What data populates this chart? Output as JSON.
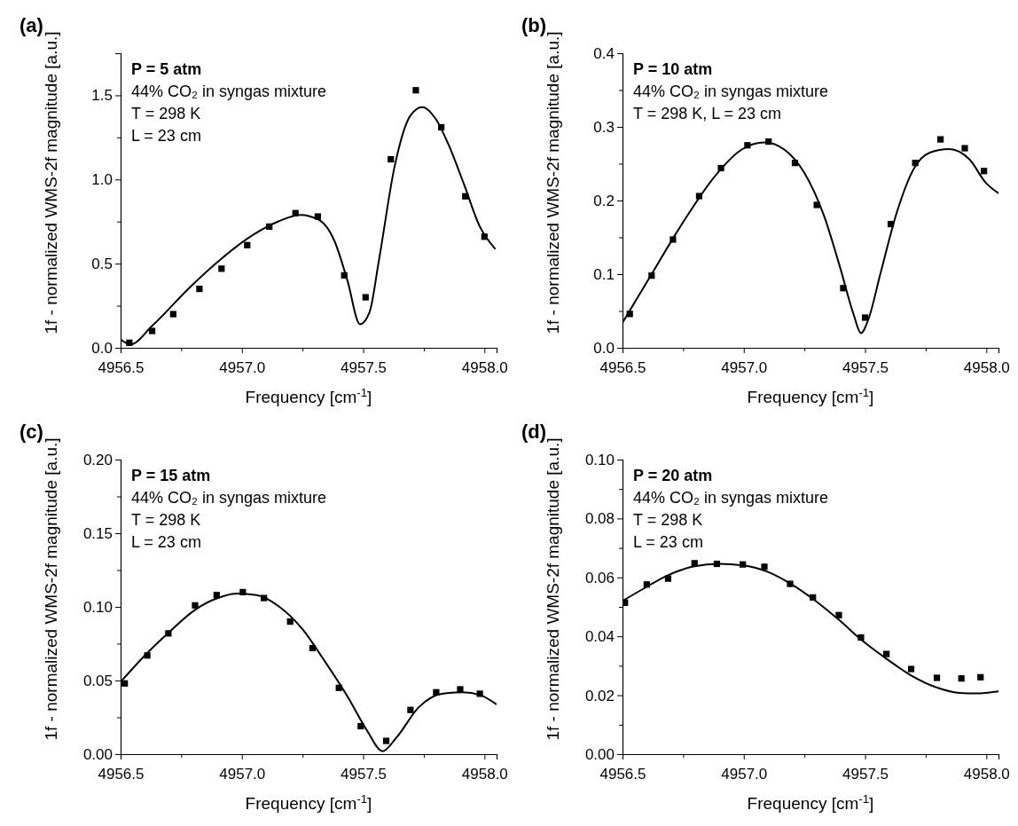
{
  "chart_data": [
    {
      "type": "scatter",
      "title": "(a)",
      "xlabel": "Frequency [cm$^{-1}$]",
      "ylabel": "1f - normalized WMS-2f magnitude [a.u.]",
      "annotations": [
        "P = 5 atm",
        "44% CO₂ in syngas mixture",
        "T = 298 K",
        "L = 23 cm"
      ],
      "marker": "square",
      "xlim": [
        4956.5,
        4958.05
      ],
      "ylim": [
        0,
        1.75
      ],
      "xticks": [
        {
          "value": 4956.5,
          "label": "4956.5"
        },
        {
          "value": 4956.75,
          "label": null
        },
        {
          "value": 4957.0,
          "label": "4957.0"
        },
        {
          "value": 4957.25,
          "label": null
        },
        {
          "value": 4957.5,
          "label": "4957.5"
        },
        {
          "value": 4957.75,
          "label": null
        },
        {
          "value": 4958.0,
          "label": "4958.0"
        }
      ],
      "yticks": [
        {
          "value": 0,
          "label": "0.0"
        },
        {
          "value": 0.25,
          "label": null
        },
        0.5,
        {
          "value": 0.75,
          "label": null
        },
        {
          "value": 1,
          "label": "1.0"
        },
        {
          "value": 1.25,
          "label": null
        },
        1.5
      ],
      "series": [
        {
          "color": "#000000",
          "x": [
            4956.536,
            4956.63,
            4956.717,
            4956.825,
            4956.916,
            4957.022,
            4957.113,
            4957.221,
            4957.313,
            4957.422,
            4957.51,
            4957.614,
            4957.717,
            4957.822,
            4957.921,
            4958.0
          ],
          "values": [
            0.03,
            0.1,
            0.2,
            0.35,
            0.47,
            0.61,
            0.72,
            0.8,
            0.78,
            0.43,
            0.3,
            1.12,
            1.53,
            1.31,
            0.9,
            0.66
          ]
        },
        {
          "type": "line",
          "color": "#000000",
          "marker": "none",
          "x": [
            4956.5,
            4956.54,
            4956.63,
            4956.786,
            4956.916,
            4957.045,
            4957.149,
            4957.24,
            4957.318,
            4957.383,
            4957.435,
            4957.487,
            4957.526,
            4957.565,
            4957.63,
            4957.695,
            4957.744,
            4957.799,
            4957.851,
            4957.916,
            4957.981,
            4958.043
          ],
          "values": [
            0.05,
            0.02,
            0.13,
            0.36,
            0.53,
            0.67,
            0.75,
            0.79,
            0.76,
            0.63,
            0.4,
            0.14,
            0.21,
            0.52,
            1.08,
            1.38,
            1.43,
            1.36,
            1.21,
            0.97,
            0.72,
            0.59
          ]
        }
      ]
    },
    {
      "type": "scatter",
      "title": "(b)",
      "xlabel": "Frequency [cm$^{-1}$]",
      "ylabel": "1f - normalized WMS-2f magnitude [a.u.]",
      "annotations": [
        "P = 10 atm",
        "44% CO₂ in syngas mixture",
        "T = 298 K, L = 23 cm"
      ],
      "marker": "square",
      "xlim": [
        4956.5,
        4958.05
      ],
      "ylim": [
        0,
        0.4
      ],
      "xticks": [
        {
          "value": 4956.5,
          "label": "4956.5"
        },
        {
          "value": 4956.75,
          "label": null
        },
        {
          "value": 4957.0,
          "label": "4957.0"
        },
        {
          "value": 4957.25,
          "label": null
        },
        {
          "value": 4957.5,
          "label": "4957.5"
        },
        {
          "value": 4957.75,
          "label": null
        },
        {
          "value": 4958.0,
          "label": "4958.0"
        }
      ],
      "yticks": [
        {
          "value": 0,
          "label": "0.0"
        },
        {
          "value": 0.05,
          "label": null
        },
        0.1,
        {
          "value": 0.15,
          "label": null
        },
        0.2,
        {
          "value": 0.25,
          "label": null
        },
        0.3,
        {
          "value": 0.35,
          "label": null
        },
        0.4
      ],
      "series": [
        {
          "color": "#000000",
          "x": [
            4956.53,
            4956.62,
            4956.708,
            4956.816,
            4956.906,
            4957.015,
            4957.102,
            4957.211,
            4957.301,
            4957.41,
            4957.5,
            4957.606,
            4957.707,
            4957.811,
            4957.911,
            4957.99
          ],
          "values": [
            0.046,
            0.098,
            0.147,
            0.206,
            0.244,
            0.275,
            0.28,
            0.251,
            0.194,
            0.081,
            0.041,
            0.168,
            0.251,
            0.283,
            0.271,
            0.24
          ]
        },
        {
          "type": "line",
          "color": "#000000",
          "marker": "none",
          "x": [
            4956.5,
            4956.609,
            4956.745,
            4956.881,
            4956.99,
            4957.086,
            4957.168,
            4957.249,
            4957.331,
            4957.398,
            4957.453,
            4957.483,
            4957.515,
            4957.562,
            4957.631,
            4957.699,
            4957.767,
            4957.846,
            4957.93,
            4957.998,
            4958.05
          ],
          "values": [
            0.034,
            0.094,
            0.168,
            0.233,
            0.269,
            0.279,
            0.269,
            0.238,
            0.179,
            0.108,
            0.045,
            0.02,
            0.04,
            0.099,
            0.184,
            0.242,
            0.265,
            0.27,
            0.256,
            0.224,
            0.21
          ]
        }
      ]
    },
    {
      "type": "scatter",
      "title": "(c)",
      "xlabel": "Frequency [cm$^{-1}$]",
      "ylabel": "1f - normalized WMS-2f magnitude [a.u.]",
      "annotations": [
        "P = 15 atm",
        "44% CO₂ in syngas mixture",
        "T = 298 K",
        "L = 23 cm"
      ],
      "marker": "square",
      "xlim": [
        4956.5,
        4958.05
      ],
      "ylim": [
        0,
        0.2
      ],
      "xticks": [
        {
          "value": 4956.5,
          "label": "4956.5"
        },
        {
          "value": 4956.75,
          "label": null
        },
        {
          "value": 4957.0,
          "label": "4957.0"
        },
        {
          "value": 4957.25,
          "label": null
        },
        {
          "value": 4957.5,
          "label": "4957.5"
        },
        {
          "value": 4957.75,
          "label": null
        },
        {
          "value": 4958.0,
          "label": "4958.0"
        }
      ],
      "yticks": [
        {
          "value": 0,
          "label": "0.00"
        },
        {
          "value": 0.025,
          "label": null
        },
        0.05,
        {
          "value": 0.075,
          "label": null
        },
        {
          "value": 0.1,
          "label": "0.10"
        },
        {
          "value": 0.125,
          "label": null
        },
        0.15,
        {
          "value": 0.175,
          "label": null
        },
        {
          "value": 0.2,
          "label": "0.20"
        }
      ],
      "series": [
        {
          "color": "#000000",
          "x": [
            4956.517,
            4956.61,
            4956.697,
            4956.807,
            4956.896,
            4957.004,
            4957.091,
            4957.199,
            4957.291,
            4957.4,
            4957.49,
            4957.595,
            4957.695,
            4957.801,
            4957.9,
            4957.981
          ],
          "values": [
            0.048,
            0.067,
            0.082,
            0.101,
            0.108,
            0.11,
            0.106,
            0.09,
            0.072,
            0.045,
            0.019,
            0.009,
            0.03,
            0.042,
            0.044,
            0.041
          ]
        },
        {
          "type": "line",
          "color": "#000000",
          "marker": "none",
          "x": [
            4956.5,
            4956.594,
            4956.701,
            4956.807,
            4956.901,
            4956.981,
            4957.061,
            4957.155,
            4957.249,
            4957.342,
            4957.436,
            4957.516,
            4957.58,
            4957.636,
            4957.73,
            4957.824,
            4957.91,
            4957.984,
            4958.048
          ],
          "values": [
            0.049,
            0.066,
            0.083,
            0.098,
            0.106,
            0.109,
            0.108,
            0.1,
            0.085,
            0.063,
            0.039,
            0.016,
            0.002,
            0.011,
            0.032,
            0.041,
            0.042,
            0.04,
            0.034
          ]
        }
      ]
    },
    {
      "type": "scatter",
      "title": "(d)",
      "xlabel": "Frequency [cm$^{-1}$]",
      "ylabel": "1f - normalized WMS-2f magnitude [a.u.]",
      "annotations": [
        "P = 20 atm",
        "44% CO₂ in syngas mixture",
        "T = 298 K",
        "L = 23 cm"
      ],
      "marker": "square",
      "xlim": [
        4956.5,
        4958.05
      ],
      "ylim": [
        0,
        0.1
      ],
      "xticks": [
        {
          "value": 4956.5,
          "label": "4956.5"
        },
        {
          "value": 4956.75,
          "label": null
        },
        {
          "value": 4957.0,
          "label": "4957.0"
        },
        {
          "value": 4957.25,
          "label": null
        },
        {
          "value": 4957.5,
          "label": "4957.5"
        },
        {
          "value": 4957.75,
          "label": null
        },
        {
          "value": 4958.0,
          "label": "4958.0"
        }
      ],
      "yticks": [
        {
          "value": 0,
          "label": "0.00"
        },
        {
          "value": 0.01,
          "label": null
        },
        0.02,
        {
          "value": 0.03,
          "label": null
        },
        0.04,
        {
          "value": 0.05,
          "label": null
        },
        0.06,
        {
          "value": 0.07,
          "label": null
        },
        0.08,
        {
          "value": 0.09,
          "label": null
        },
        {
          "value": 0.1,
          "label": "0.10"
        }
      ],
      "series": [
        {
          "color": "#000000",
          "x": [
            4956.51,
            4956.6,
            4956.688,
            4956.797,
            4956.889,
            4956.996,
            4957.085,
            4957.191,
            4957.285,
            4957.392,
            4957.483,
            4957.588,
            4957.69,
            4957.796,
            4957.897,
            4957.976
          ],
          "values": [
            0.0514,
            0.0576,
            0.0596,
            0.0648,
            0.0646,
            0.0644,
            0.0636,
            0.0578,
            0.0532,
            0.0472,
            0.0396,
            0.034,
            0.0289,
            0.0259,
            0.0257,
            0.0261
          ]
        },
        {
          "type": "line",
          "color": "#000000",
          "marker": "none",
          "x": [
            4956.5,
            4956.585,
            4956.684,
            4956.797,
            4956.897,
            4956.996,
            4957.095,
            4957.194,
            4957.293,
            4957.392,
            4957.492,
            4957.591,
            4957.69,
            4957.789,
            4957.888,
            4957.959,
            4958.05
          ],
          "values": [
            0.052,
            0.0561,
            0.0606,
            0.0638,
            0.0646,
            0.0641,
            0.062,
            0.0578,
            0.0522,
            0.0456,
            0.0383,
            0.0322,
            0.0267,
            0.0228,
            0.0208,
            0.0206,
            0.0213
          ]
        }
      ]
    }
  ]
}
